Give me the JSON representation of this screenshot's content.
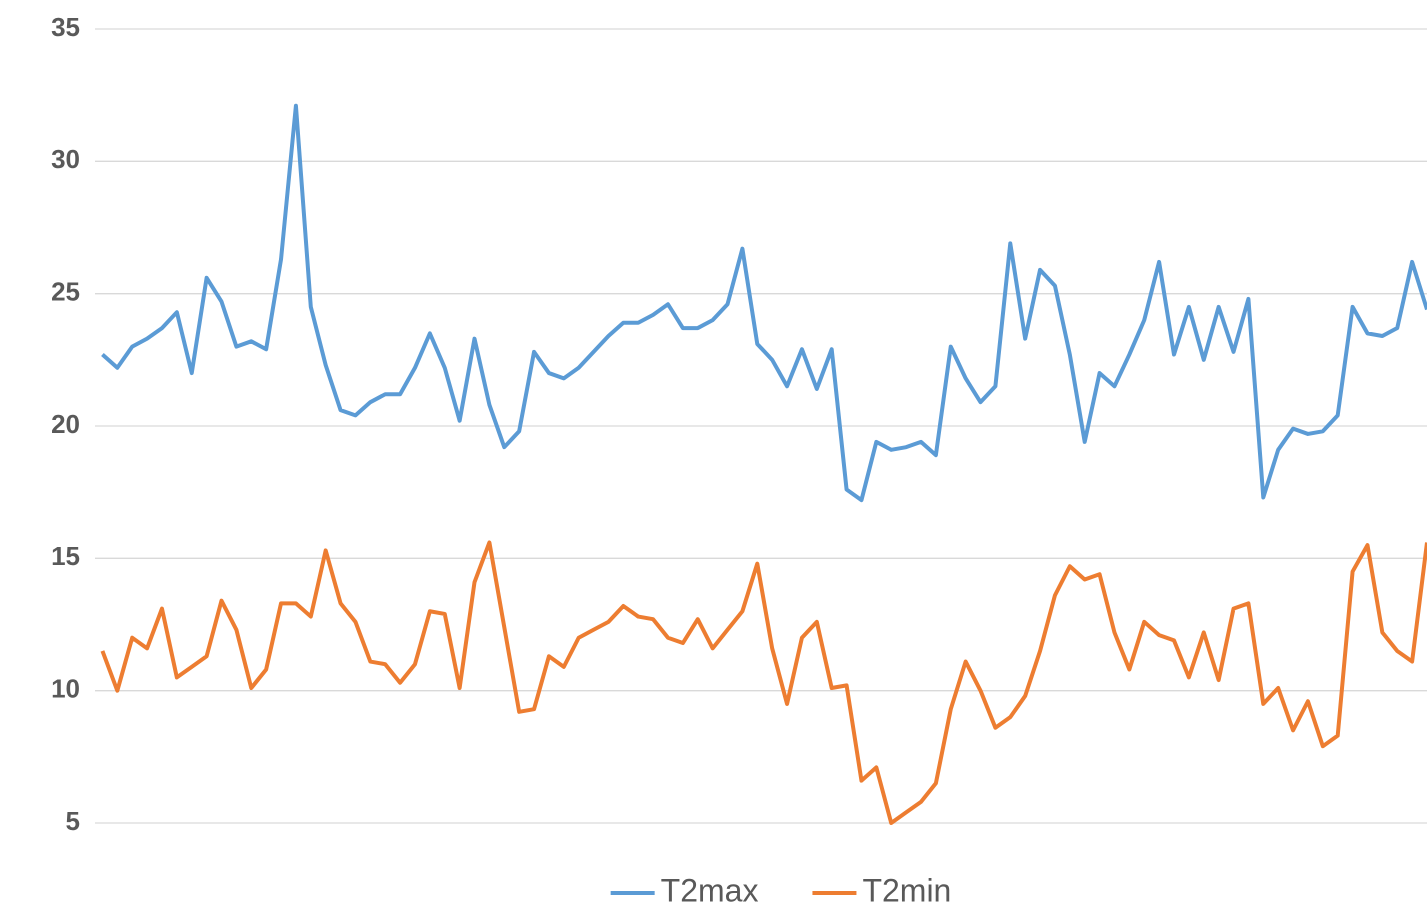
{
  "chart_data": {
    "type": "line",
    "series": [
      {
        "name": "T2max",
        "color": "#5b9bd5",
        "values": [
          22.7,
          22.2,
          23.0,
          23.3,
          23.7,
          24.3,
          22.0,
          25.6,
          24.7,
          23.0,
          23.2,
          22.9,
          26.3,
          32.1,
          24.5,
          22.3,
          20.6,
          20.4,
          20.9,
          21.2,
          21.2,
          22.2,
          23.5,
          22.2,
          20.2,
          23.3,
          20.8,
          19.2,
          19.8,
          22.8,
          22.0,
          21.8,
          22.2,
          22.8,
          23.4,
          23.9,
          23.9,
          24.2,
          24.6,
          23.7,
          23.7,
          24.0,
          24.6,
          26.7,
          23.1,
          22.5,
          21.5,
          22.9,
          21.4,
          22.9,
          17.6,
          17.2,
          19.4,
          19.1,
          19.2,
          19.4,
          18.9,
          23.0,
          21.8,
          20.9,
          21.5,
          26.9,
          23.3,
          25.9,
          25.3,
          22.7,
          19.4,
          22.0,
          21.5,
          22.7,
          24.0,
          26.2,
          22.7,
          24.5,
          22.5,
          24.5,
          22.8,
          24.8,
          17.3,
          19.1,
          19.9,
          19.7,
          19.8,
          20.4,
          24.5,
          23.5,
          23.4,
          23.7,
          26.2,
          24.4
        ]
      },
      {
        "name": "T2min",
        "color": "#ed7d31",
        "values": [
          11.5,
          10.0,
          12.0,
          11.6,
          13.1,
          10.5,
          10.9,
          11.3,
          13.4,
          12.3,
          10.1,
          10.8,
          13.3,
          13.3,
          12.8,
          15.3,
          13.3,
          12.6,
          11.1,
          11.0,
          10.3,
          11.0,
          13.0,
          12.9,
          10.1,
          14.1,
          15.6,
          12.4,
          9.2,
          9.3,
          11.3,
          10.9,
          12.0,
          12.3,
          12.6,
          13.2,
          12.8,
          12.7,
          12.0,
          11.8,
          12.7,
          11.6,
          12.3,
          13.0,
          14.8,
          11.6,
          9.5,
          12.0,
          12.6,
          10.1,
          10.2,
          6.6,
          7.1,
          5.0,
          5.4,
          5.8,
          6.5,
          9.3,
          11.1,
          10.0,
          8.6,
          9.0,
          9.8,
          11.5,
          13.6,
          14.7,
          14.2,
          14.4,
          12.2,
          10.8,
          12.6,
          12.1,
          11.9,
          10.5,
          12.2,
          10.4,
          13.1,
          13.3,
          9.5,
          10.1,
          8.5,
          9.6,
          7.9,
          8.3,
          14.5,
          15.5,
          12.2,
          11.5,
          11.1,
          15.6
        ]
      }
    ],
    "ylim": [
      5,
      35
    ],
    "yticks": [
      5,
      10,
      15,
      20,
      25,
      30,
      35
    ],
    "grid": true,
    "legend": "bottom"
  }
}
